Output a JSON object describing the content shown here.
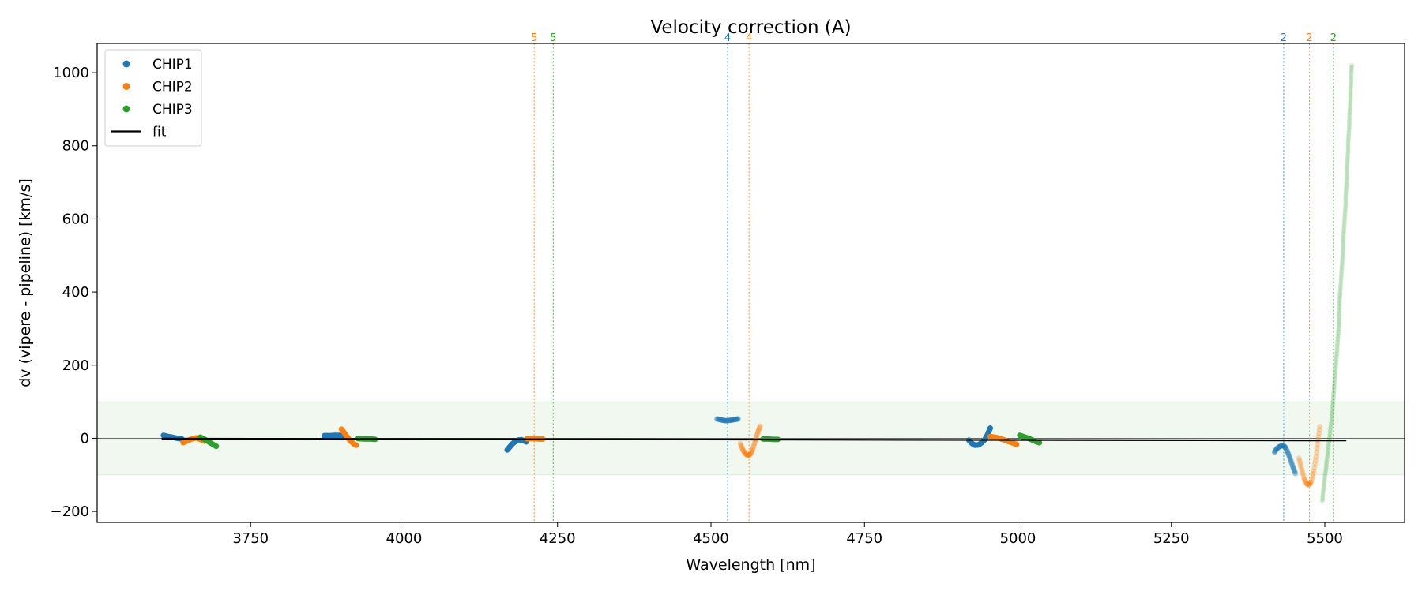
{
  "chart_data": {
    "type": "scatter",
    "title": "Velocity correction (A)",
    "xlabel": "Wavelength [nm]",
    "ylabel": "dv (vipere - pipeline) [km/s]",
    "xlim": [
      3500,
      5630
    ],
    "ylim": [
      -230,
      1080
    ],
    "xticks": [
      3750,
      4000,
      4250,
      4500,
      4750,
      5000,
      5250,
      5500
    ],
    "yticks": [
      -200,
      0,
      200,
      400,
      600,
      800,
      1000
    ],
    "grid": false,
    "legend_position": "upper-left",
    "band": {
      "y0": -100,
      "y1": 100,
      "color": "#2ca02c"
    },
    "zero_line": {
      "y": 0,
      "color": "#555555"
    },
    "legend": [
      {
        "label": "CHIP1",
        "kind": "marker",
        "color": "#1f77b4"
      },
      {
        "label": "CHIP2",
        "kind": "marker",
        "color": "#ff7f0e"
      },
      {
        "label": "CHIP3",
        "kind": "marker",
        "color": "#2ca02c"
      },
      {
        "label": "fit",
        "kind": "line",
        "color": "#000000"
      }
    ],
    "vlines": [
      {
        "x": 4212,
        "label": "5",
        "color": "#ff7f0e"
      },
      {
        "x": 4243,
        "label": "5",
        "color": "#2ca02c"
      },
      {
        "x": 4527,
        "label": "4",
        "color": "#1f77b4"
      },
      {
        "x": 4562,
        "label": "4",
        "color": "#ff7f0e"
      },
      {
        "x": 5433,
        "label": "2",
        "color": "#1f77b4"
      },
      {
        "x": 5475,
        "label": "2",
        "color": "#ff7f0e"
      },
      {
        "x": 5514,
        "label": "2",
        "color": "#2ca02c"
      }
    ],
    "fit": [
      [
        3605,
        -1
      ],
      [
        5535,
        -6
      ]
    ],
    "series": [
      {
        "name": "CHIP1",
        "color": "#1f77b4",
        "opacity": 1,
        "size": 3.5,
        "points": [
          [
            3608,
            8
          ],
          [
            3615,
            5
          ],
          [
            3622,
            3
          ],
          [
            3630,
            0
          ],
          [
            3638,
            -2
          ]
        ]
      },
      {
        "name": "CHIP2",
        "color": "#ff7f0e",
        "opacity": 1,
        "size": 3.5,
        "points": [
          [
            3640,
            -12
          ],
          [
            3648,
            -6
          ],
          [
            3655,
            -1
          ],
          [
            3662,
            1
          ],
          [
            3668,
            -3
          ],
          [
            3675,
            -8
          ]
        ]
      },
      {
        "name": "CHIP3",
        "color": "#2ca02c",
        "opacity": 1,
        "size": 3.5,
        "points": [
          [
            3668,
            3
          ],
          [
            3675,
            -3
          ],
          [
            3682,
            -10
          ],
          [
            3690,
            -18
          ],
          [
            3694,
            -22
          ]
        ]
      },
      {
        "name": "CHIP1",
        "color": "#1f77b4",
        "opacity": 1,
        "size": 3.5,
        "points": [
          [
            3870,
            7
          ],
          [
            3878,
            7
          ],
          [
            3886,
            8
          ],
          [
            3894,
            8
          ],
          [
            3900,
            7
          ]
        ]
      },
      {
        "name": "CHIP2",
        "color": "#ff7f0e",
        "opacity": 1,
        "size": 3.5,
        "points": [
          [
            3898,
            25
          ],
          [
            3903,
            14
          ],
          [
            3908,
            2
          ],
          [
            3913,
            -8
          ],
          [
            3918,
            -15
          ],
          [
            3922,
            -19
          ]
        ]
      },
      {
        "name": "CHIP3",
        "color": "#2ca02c",
        "opacity": 1,
        "size": 3.5,
        "points": [
          [
            3925,
            -1
          ],
          [
            3935,
            -2
          ],
          [
            3945,
            -2
          ],
          [
            3953,
            -3
          ]
        ]
      },
      {
        "name": "CHIP1",
        "color": "#1f77b4",
        "opacity": 1,
        "size": 3.5,
        "points": [
          [
            4168,
            -32
          ],
          [
            4172,
            -24
          ],
          [
            4176,
            -16
          ],
          [
            4181,
            -9
          ],
          [
            4186,
            -5
          ],
          [
            4191,
            -4
          ],
          [
            4196,
            -7
          ],
          [
            4199,
            -10
          ]
        ]
      },
      {
        "name": "CHIP2",
        "color": "#ff7f0e",
        "opacity": 1,
        "size": 3.5,
        "points": [
          [
            4200,
            -1
          ],
          [
            4207,
            -1
          ],
          [
            4214,
            -1
          ],
          [
            4220,
            -2
          ],
          [
            4226,
            -2
          ]
        ]
      },
      {
        "name": "CHIP1",
        "color": "#1f77b4",
        "opacity": 0.5,
        "size": 3.5,
        "points": [
          [
            4510,
            53
          ],
          [
            4517,
            50
          ],
          [
            4524,
            48
          ],
          [
            4531,
            49
          ],
          [
            4538,
            51
          ],
          [
            4544,
            53
          ]
        ]
      },
      {
        "name": "CHIP2",
        "color": "#ff7f0e",
        "opacity": 0.35,
        "size": 3.5,
        "points": [
          [
            4548,
            -15
          ],
          [
            4552,
            -32
          ],
          [
            4556,
            -42
          ],
          [
            4560,
            -47
          ],
          [
            4564,
            -44
          ],
          [
            4568,
            -30
          ],
          [
            4572,
            -8
          ],
          [
            4576,
            15
          ],
          [
            4580,
            33
          ]
        ]
      },
      {
        "name": "CHIP3",
        "color": "#2ca02c",
        "opacity": 1,
        "size": 3.5,
        "points": [
          [
            4585,
            -2
          ],
          [
            4593,
            -2
          ],
          [
            4601,
            -3
          ],
          [
            4609,
            -3
          ]
        ]
      },
      {
        "name": "CHIP1",
        "color": "#1f77b4",
        "opacity": 1,
        "size": 3.5,
        "points": [
          [
            4920,
            -5
          ],
          [
            4925,
            -14
          ],
          [
            4930,
            -19
          ],
          [
            4936,
            -18
          ],
          [
            4941,
            -12
          ],
          [
            4946,
            -4
          ],
          [
            4950,
            8
          ],
          [
            4953,
            20
          ],
          [
            4955,
            28
          ]
        ]
      },
      {
        "name": "CHIP2",
        "color": "#ff7f0e",
        "opacity": 1,
        "size": 3.5,
        "points": [
          [
            4955,
            5
          ],
          [
            4965,
            2
          ],
          [
            4975,
            -3
          ],
          [
            4985,
            -9
          ],
          [
            4995,
            -15
          ],
          [
            4998,
            -17
          ]
        ]
      },
      {
        "name": "CHIP3",
        "color": "#2ca02c",
        "opacity": 1,
        "size": 3.5,
        "points": [
          [
            5003,
            8
          ],
          [
            5010,
            4
          ],
          [
            5017,
            0
          ],
          [
            5024,
            -5
          ],
          [
            5031,
            -10
          ],
          [
            5035,
            -12
          ]
        ]
      },
      {
        "name": "CHIP1",
        "color": "#1f77b4",
        "opacity": 0.4,
        "size": 3.5,
        "points": [
          [
            5418,
            -38
          ],
          [
            5422,
            -28
          ],
          [
            5427,
            -22
          ],
          [
            5432,
            -20
          ],
          [
            5436,
            -25
          ],
          [
            5440,
            -40
          ],
          [
            5444,
            -58
          ],
          [
            5448,
            -78
          ],
          [
            5452,
            -96
          ]
        ]
      },
      {
        "name": "CHIP2",
        "color": "#ff7f0e",
        "opacity": 0.3,
        "size": 3.5,
        "points": [
          [
            5458,
            -55
          ],
          [
            5462,
            -82
          ],
          [
            5466,
            -108
          ],
          [
            5470,
            -123
          ],
          [
            5474,
            -128
          ],
          [
            5478,
            -118
          ],
          [
            5482,
            -90
          ],
          [
            5486,
            -50
          ],
          [
            5489,
            -5
          ],
          [
            5492,
            32
          ]
        ]
      },
      {
        "name": "CHIP3",
        "color": "#2ca02c",
        "opacity": 0.18,
        "size": 3,
        "points": [
          [
            5496,
            -172
          ],
          [
            5497,
            -150
          ],
          [
            5499,
            -128
          ],
          [
            5500,
            -106
          ],
          [
            5502,
            -84
          ],
          [
            5503,
            -62
          ],
          [
            5505,
            -40
          ],
          [
            5506,
            -18
          ],
          [
            5508,
            4
          ],
          [
            5509,
            26
          ],
          [
            5511,
            48
          ],
          [
            5512,
            70
          ],
          [
            5513,
            92
          ],
          [
            5514,
            114
          ],
          [
            5515,
            136
          ],
          [
            5516,
            158
          ],
          [
            5517,
            180
          ],
          [
            5518,
            202
          ],
          [
            5519,
            224
          ],
          [
            5520,
            246
          ],
          [
            5521,
            268
          ],
          [
            5522,
            290
          ],
          [
            5523,
            312
          ],
          [
            5523,
            334
          ],
          [
            5524,
            356
          ],
          [
            5524,
            378
          ],
          [
            5525,
            400
          ],
          [
            5526,
            424
          ],
          [
            5527,
            448
          ],
          [
            5528,
            472
          ],
          [
            5529,
            496
          ],
          [
            5530,
            520
          ],
          [
            5530,
            544
          ],
          [
            5531,
            568
          ],
          [
            5532,
            592
          ],
          [
            5533,
            616
          ],
          [
            5534,
            640
          ],
          [
            5534,
            664
          ],
          [
            5535,
            688
          ],
          [
            5536,
            712
          ],
          [
            5536,
            736
          ],
          [
            5537,
            760
          ],
          [
            5538,
            784
          ],
          [
            5538,
            808
          ],
          [
            5539,
            832
          ],
          [
            5540,
            856
          ],
          [
            5540,
            880
          ],
          [
            5541,
            904
          ],
          [
            5542,
            928
          ],
          [
            5542,
            952
          ],
          [
            5543,
            976
          ],
          [
            5543,
            1000
          ],
          [
            5544,
            1020
          ]
        ]
      }
    ]
  }
}
